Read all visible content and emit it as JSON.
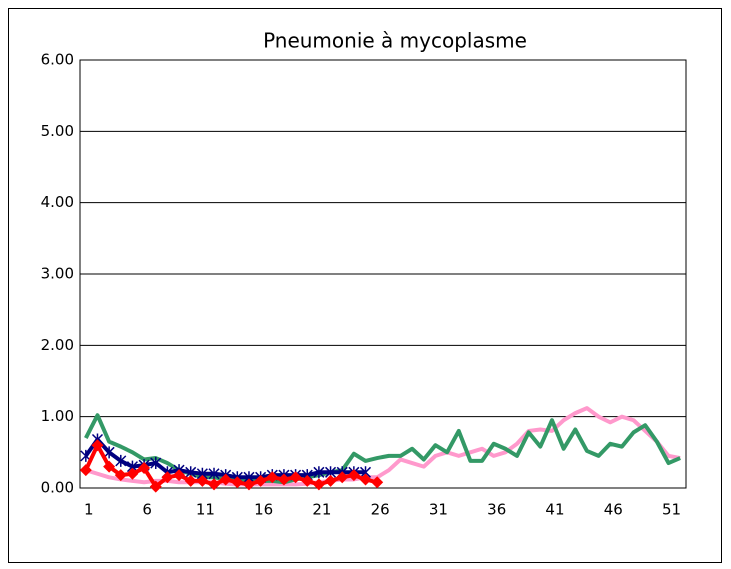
{
  "chart_data": {
    "type": "line",
    "title": "Pneumonie à mycoplasme",
    "categories": [
      1,
      null,
      null,
      null,
      null,
      6,
      null,
      null,
      null,
      null,
      11,
      null,
      null,
      null,
      null,
      16,
      null,
      null,
      null,
      null,
      21,
      null,
      null,
      null,
      null,
      26,
      null,
      null,
      null,
      null,
      31,
      null,
      null,
      null,
      null,
      36,
      null,
      null,
      null,
      null,
      41,
      null,
      null,
      null,
      null,
      46,
      null,
      null,
      null,
      null,
      51,
      null
    ],
    "ylim": [
      0,
      6
    ],
    "yticks": [
      {
        "value": 0,
        "label": "0.00"
      },
      {
        "value": 1,
        "label": "1.00"
      },
      {
        "value": 2,
        "label": "2.00"
      },
      {
        "value": 3,
        "label": "3.00"
      },
      {
        "value": 4,
        "label": "4.00"
      },
      {
        "value": 5,
        "label": "5.00"
      },
      {
        "value": 6,
        "label": "6.00"
      }
    ],
    "grid": true,
    "series": [
      {
        "color": "#ff99cc",
        "marker": "none",
        "values": [
          0.25,
          0.2,
          0.15,
          0.12,
          0.1,
          0.08,
          0.1,
          0.1,
          0.08,
          0.08,
          0.08,
          0.08,
          0.06,
          0.05,
          0.05,
          0.05,
          0.05,
          0.05,
          0.05,
          0.06,
          0.08,
          0.1,
          0.12,
          0.12,
          0.15,
          0.15,
          0.25,
          0.4,
          0.35,
          0.3,
          0.45,
          0.5,
          0.45,
          0.5,
          0.55,
          0.45,
          0.5,
          0.62,
          0.8,
          0.82,
          0.8,
          0.95,
          1.05,
          1.12,
          1.0,
          0.92,
          1.0,
          0.95,
          0.8,
          0.65,
          0.45,
          0.42
        ]
      },
      {
        "color": "#339966",
        "marker": "none",
        "values": [
          0.7,
          1.02,
          0.65,
          0.58,
          0.5,
          0.4,
          0.42,
          0.35,
          0.25,
          0.2,
          0.15,
          0.15,
          0.12,
          0.12,
          0.1,
          0.1,
          0.1,
          0.08,
          0.12,
          0.15,
          0.18,
          0.22,
          0.25,
          0.48,
          0.38,
          0.42,
          0.45,
          0.45,
          0.55,
          0.4,
          0.6,
          0.5,
          0.8,
          0.38,
          0.38,
          0.62,
          0.55,
          0.45,
          0.78,
          0.58,
          0.95,
          0.55,
          0.82,
          0.52,
          0.45,
          0.62,
          0.58,
          0.78,
          0.88,
          0.65,
          0.35,
          0.42
        ]
      },
      {
        "color": "#000080",
        "marker": "x",
        "values": [
          0.45,
          0.68,
          0.5,
          0.38,
          0.3,
          0.32,
          0.35,
          0.22,
          0.25,
          0.22,
          0.2,
          0.2,
          0.18,
          0.15,
          0.15,
          0.15,
          0.18,
          0.18,
          0.18,
          0.18,
          0.22,
          0.22,
          0.22,
          0.22,
          0.22,
          null,
          null,
          null,
          null,
          null,
          null,
          null,
          null,
          null,
          null,
          null,
          null,
          null,
          null,
          null,
          null,
          null,
          null,
          null,
          null,
          null,
          null,
          null,
          null,
          null,
          null,
          null
        ]
      },
      {
        "color": "#ff0000",
        "marker": "diamond",
        "values": [
          0.25,
          0.6,
          0.3,
          0.18,
          0.2,
          0.28,
          0.02,
          0.15,
          0.18,
          0.1,
          0.1,
          0.05,
          0.12,
          0.08,
          0.05,
          0.1,
          0.15,
          0.12,
          0.15,
          0.1,
          0.05,
          0.1,
          0.15,
          0.18,
          0.12,
          0.08,
          null,
          null,
          null,
          null,
          null,
          null,
          null,
          null,
          null,
          null,
          null,
          null,
          null,
          null,
          null,
          null,
          null,
          null,
          null,
          null,
          null,
          null,
          null,
          null,
          null,
          null
        ]
      }
    ]
  }
}
